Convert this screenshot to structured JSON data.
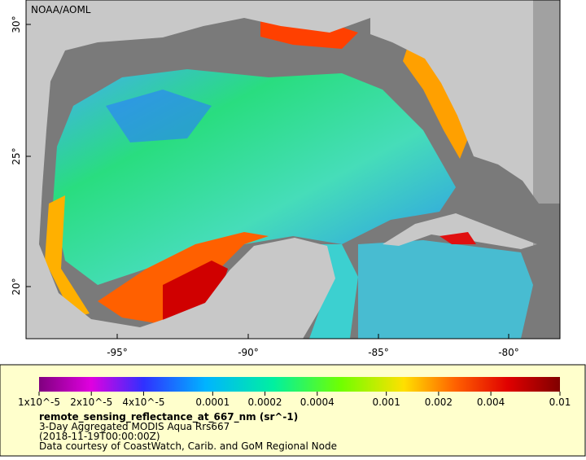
{
  "map": {
    "credit": "NOAA/AOML",
    "lat_labels": [
      "30°",
      "25°",
      "20°"
    ],
    "lon_labels": [
      "-95°",
      "-90°",
      "-85°",
      "-80°"
    ]
  },
  "legend": {
    "ticks": [
      {
        "value": 1e-05,
        "label": "1x10^-5"
      },
      {
        "value": 2e-05,
        "label": "2x10^-5"
      },
      {
        "value": 4e-05,
        "label": "4x10^-5"
      },
      0.0001,
      0.0002,
      0.0004,
      0.001,
      0.002,
      0.004,
      0.01
    ],
    "range": [
      1e-05,
      0.01
    ],
    "title": "remote_sensing_reflectance_at_667_nm (sr^-1)",
    "lines": [
      "3-Day Aggregated MODIS Aqua Rrs667",
      "(2018-11-19T00:00:00Z)",
      "Data courtesy of CoastWatch, Carib. and GoM Regional Node"
    ]
  }
}
